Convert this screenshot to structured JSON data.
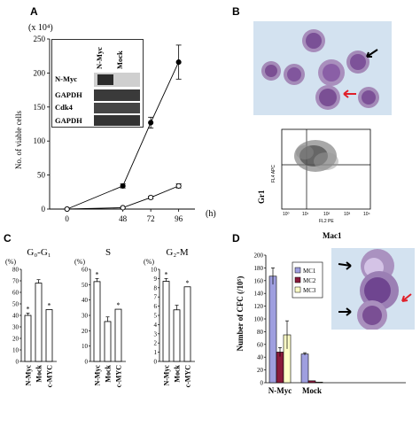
{
  "panels": {
    "A": {
      "letter": "A",
      "exponent_label": "(x 10⁴)",
      "ylabel": "No. of viable cells",
      "x_unit": "(h)",
      "blot": {
        "lanes": [
          "N-Myc",
          "Mock"
        ],
        "rows": [
          "N-Myc",
          "GAPDH",
          "Cdk4",
          "GAPDH"
        ]
      }
    },
    "B": {
      "letter": "B",
      "flow": {
        "ylabel": "Gr1",
        "xlabel": "Mac1",
        "axis_y_text": "FL4 APC",
        "axis_x_text": "FL2 PE",
        "ticks": [
          "10⁰",
          "10¹",
          "10²",
          "10³",
          "10⁴"
        ]
      }
    },
    "C": {
      "letter": "C",
      "unit": "(%)",
      "categories": [
        "N-Myc",
        "Mock",
        "c-MYC"
      ]
    },
    "D": {
      "letter": "D",
      "ylabel": "Number of CFC (/10⁵)"
    }
  },
  "chart_data": [
    {
      "id": "A",
      "type": "line",
      "x": [
        0,
        48,
        72,
        96
      ],
      "xticks": [
        "0",
        "48",
        "72",
        "96"
      ],
      "yticks": [
        "0",
        "50",
        "100",
        "150",
        "200",
        "250"
      ],
      "ylim": [
        0,
        250
      ],
      "xlim": [
        -15,
        110
      ],
      "series": [
        {
          "marker": "filled",
          "values": [
            0,
            34,
            127,
            216
          ],
          "errors": [
            0,
            3,
            8,
            25
          ]
        },
        {
          "marker": "open",
          "values": [
            0,
            2,
            17,
            34
          ],
          "errors": [
            0,
            1,
            2,
            3
          ]
        }
      ]
    },
    {
      "id": "C1",
      "type": "bar",
      "title": "G₀-G₁",
      "categories": [
        "N-Myc",
        "Mock",
        "c-MYC"
      ],
      "values": [
        40,
        68,
        45
      ],
      "errors": [
        2,
        3,
        0
      ],
      "stars": [
        "*",
        "",
        "*"
      ],
      "ylim": [
        0,
        80
      ],
      "yticks": [
        "0",
        "10",
        "20",
        "30",
        "40",
        "50",
        "60",
        "70",
        "80"
      ]
    },
    {
      "id": "C2",
      "type": "bar",
      "title": "S",
      "categories": [
        "N-Myc",
        "Mock",
        "c-MYC"
      ],
      "values": [
        52,
        26,
        34
      ],
      "errors": [
        2,
        3,
        0
      ],
      "stars": [
        "*",
        "",
        "*"
      ],
      "ylim": [
        0,
        60
      ],
      "yticks": [
        "0",
        "10",
        "20",
        "30",
        "40",
        "50",
        "60"
      ]
    },
    {
      "id": "C3",
      "type": "bar",
      "title": "G₂-M",
      "categories": [
        "N-Myc",
        "Mock",
        "c-MYC"
      ],
      "values": [
        8.7,
        5.6,
        8.1
      ],
      "errors": [
        0.3,
        0.5,
        0
      ],
      "stars": [
        "*",
        "",
        "*"
      ],
      "ylim": [
        0,
        10
      ],
      "yticks": [
        "0",
        "1",
        "2",
        "3",
        "4",
        "5",
        "6",
        "7",
        "8",
        "9",
        "10"
      ]
    },
    {
      "id": "D",
      "type": "bar",
      "categories": [
        "N-Myc",
        "Mock"
      ],
      "ylim": [
        0,
        200
      ],
      "yticks": [
        "0",
        "20",
        "40",
        "60",
        "80",
        "100",
        "120",
        "140",
        "160",
        "180",
        "200"
      ],
      "series": [
        {
          "name": "MC1",
          "color": "#9f9fdf",
          "values": [
            167,
            45
          ],
          "errors": [
            13,
            2
          ]
        },
        {
          "name": "MC2",
          "color": "#8a1b3b",
          "values": [
            48,
            3
          ],
          "errors": [
            7,
            0
          ]
        },
        {
          "name": "MC3",
          "color": "#ffffc8",
          "values": [
            75,
            1
          ],
          "errors": [
            22,
            0
          ]
        }
      ]
    }
  ]
}
